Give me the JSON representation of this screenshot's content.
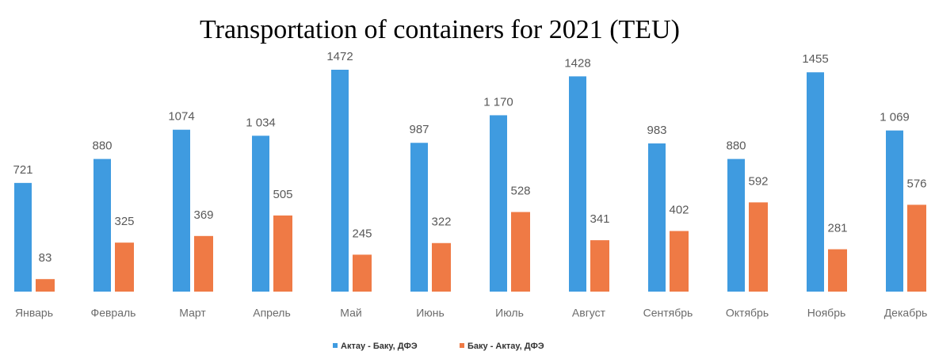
{
  "chart_data": {
    "type": "bar",
    "title": "Transportation of containers for 2021 (TEU)",
    "categories": [
      "Январь",
      "Февраль",
      "Март",
      "Апрель",
      "Май",
      "Июнь",
      "Июль",
      "Август",
      "Сентябрь",
      "Октябрь",
      "Ноябрь",
      "Декабрь"
    ],
    "series": [
      {
        "name": "Актау - Баку, ДФЭ",
        "color": "#3f9be0",
        "values": [
          721,
          880,
          1074,
          1034,
          1472,
          987,
          1170,
          1428,
          983,
          880,
          1455,
          1069
        ],
        "value_labels": [
          "721",
          "880",
          "1074",
          "1 034",
          "1472",
          "987",
          "1 170",
          "1428",
          "983",
          "880",
          "1455",
          "1 069"
        ]
      },
      {
        "name": "Баку - Актау, ДФЭ",
        "color": "#ef7a45",
        "values": [
          83,
          325,
          369,
          505,
          245,
          322,
          528,
          341,
          402,
          592,
          281,
          576
        ]
      }
    ],
    "legend": "bottom"
  }
}
